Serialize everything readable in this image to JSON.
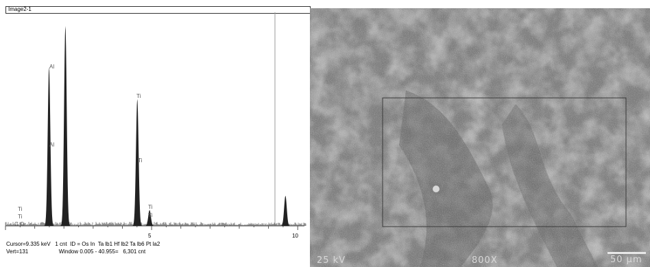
{
  "eds": {
    "panel_title": "Image2-1",
    "status_line1": "Cursor=9.335 keV   1 cnt  ID = Os In  Ta lb1 Hf lb2 Ta lb6 Pt la2",
    "status_line2": "Vert=131                    Window 0.005 - 40.955=   6,301 cnt",
    "axis_tick_labels": [
      "5",
      "10"
    ],
    "peak_labels": [
      "Al",
      "Al",
      "Ti",
      "Ti",
      "Ti",
      "Ti",
      "Ti",
      "Ti",
      "C",
      "O"
    ]
  },
  "chart_data": {
    "type": "bar",
    "title": "Image2-1",
    "xlabel": "",
    "ylabel": "",
    "xlim": [
      0,
      10.3
    ],
    "ylim": [
      0,
      131
    ],
    "grid": false,
    "x_ticks": [
      5,
      10
    ],
    "peaks": [
      {
        "x": 1.49,
        "y": 100
      },
      {
        "x": 2.05,
        "y": 126
      },
      {
        "x": 4.51,
        "y": 80
      },
      {
        "x": 4.93,
        "y": 10
      },
      {
        "x": 9.58,
        "y": 19
      }
    ],
    "cursor_x": 9.335
  },
  "sem": {
    "voltage_label": "25 kV",
    "magnification_label": "800X",
    "scalebar_label": "50 µm"
  }
}
